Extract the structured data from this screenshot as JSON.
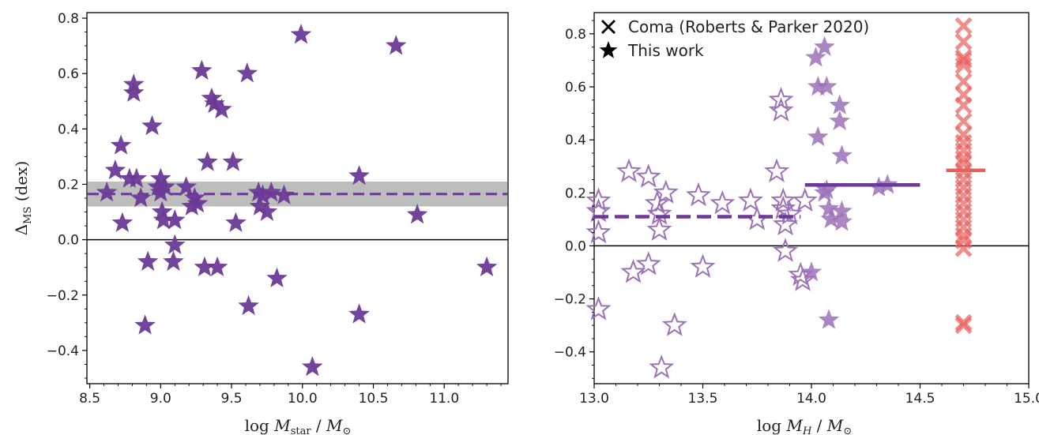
{
  "chart_data": [
    {
      "type": "scatter",
      "xlabel": "log  M_star / M_⊙",
      "ylabel": "Δ_MS  (dex)",
      "xlim": [
        8.48,
        11.45
      ],
      "ylim": [
        -0.52,
        0.82
      ],
      "xticks": [
        "8.5",
        "9.0",
        "9.5",
        "10.0",
        "10.5",
        "11.0"
      ],
      "yticks": [
        "−0.4",
        "−0.2",
        "0.0",
        "0.2",
        "0.4",
        "0.6",
        "0.8"
      ],
      "colors": {
        "points": "#6b3a96",
        "band": "#bdbdbd",
        "median": "#6b3a96",
        "zero": "#000000"
      },
      "band": [
        0.12,
        0.21
      ],
      "median_line": 0.165,
      "points": [
        [
          8.62,
          0.17
        ],
        [
          8.68,
          0.25
        ],
        [
          8.72,
          0.34
        ],
        [
          8.73,
          0.06
        ],
        [
          8.78,
          0.22
        ],
        [
          8.81,
          0.56
        ],
        [
          8.81,
          0.53
        ],
        [
          8.83,
          0.22
        ],
        [
          8.86,
          0.15
        ],
        [
          8.89,
          -0.31
        ],
        [
          8.91,
          -0.08
        ],
        [
          8.94,
          0.41
        ],
        [
          8.98,
          0.19
        ],
        [
          9.0,
          0.22
        ],
        [
          9.0,
          0.17
        ],
        [
          9.01,
          0.1
        ],
        [
          9.02,
          0.07
        ],
        [
          9.03,
          0.19
        ],
        [
          9.09,
          -0.08
        ],
        [
          9.1,
          -0.02
        ],
        [
          9.1,
          0.07
        ],
        [
          9.18,
          0.19
        ],
        [
          9.22,
          0.12
        ],
        [
          9.24,
          0.15
        ],
        [
          9.26,
          0.13
        ],
        [
          9.29,
          0.61
        ],
        [
          9.31,
          -0.1
        ],
        [
          9.33,
          0.28
        ],
        [
          9.36,
          0.51
        ],
        [
          9.38,
          0.49
        ],
        [
          9.4,
          -0.1
        ],
        [
          9.43,
          0.47
        ],
        [
          9.51,
          0.28
        ],
        [
          9.53,
          0.06
        ],
        [
          9.61,
          0.6
        ],
        [
          9.62,
          -0.24
        ],
        [
          9.69,
          0.17
        ],
        [
          9.7,
          0.12
        ],
        [
          9.72,
          0.16
        ],
        [
          9.75,
          0.1
        ],
        [
          9.78,
          0.17
        ],
        [
          9.82,
          -0.14
        ],
        [
          9.87,
          0.16
        ],
        [
          9.99,
          0.74
        ],
        [
          10.07,
          -0.46
        ],
        [
          10.4,
          0.23
        ],
        [
          10.4,
          -0.27
        ],
        [
          10.66,
          0.7
        ],
        [
          10.81,
          0.09
        ],
        [
          11.3,
          -0.1
        ]
      ]
    },
    {
      "type": "scatter",
      "xlabel": "log  M_H / M_⊙",
      "xlim": [
        13.0,
        15.0
      ],
      "ylim": [
        -0.52,
        0.88
      ],
      "xticks": [
        "13.0",
        "13.5",
        "14.0",
        "14.5",
        "15.0"
      ],
      "yticks": [
        "−0.4",
        "−0.2",
        "0.0",
        "0.2",
        "0.4",
        "0.6",
        "0.8"
      ],
      "colors": {
        "this_work": "#9b72b8",
        "coma": "#e8605c",
        "bins": "#6b3a96",
        "zero": "#000000"
      },
      "legend": {
        "position": "top-left",
        "entries": [
          "Coma (Roberts & Parker 2020)",
          "This work"
        ]
      },
      "bins": [
        {
          "x": [
            13.0,
            13.95
          ],
          "y": 0.11,
          "style": "dashed"
        },
        {
          "x": [
            13.97,
            14.5
          ],
          "y": 0.23,
          "style": "solid"
        },
        {
          "x": [
            14.62,
            14.8
          ],
          "y": 0.285,
          "style": "solid"
        }
      ],
      "this_work_open": [
        [
          13.02,
          0.17
        ],
        [
          13.02,
          0.13
        ],
        [
          13.02,
          0.05
        ],
        [
          13.02,
          -0.24
        ],
        [
          13.16,
          0.28
        ],
        [
          13.18,
          -0.1
        ],
        [
          13.25,
          0.26
        ],
        [
          13.25,
          -0.07
        ],
        [
          13.29,
          0.16
        ],
        [
          13.3,
          0.12
        ],
        [
          13.3,
          0.06
        ],
        [
          13.31,
          -0.46
        ],
        [
          13.33,
          0.2
        ],
        [
          13.37,
          -0.3
        ],
        [
          13.48,
          0.19
        ],
        [
          13.5,
          -0.08
        ],
        [
          13.59,
          0.16
        ],
        [
          13.72,
          0.17
        ],
        [
          13.75,
          0.1
        ],
        [
          13.84,
          0.28
        ],
        [
          13.86,
          0.55
        ],
        [
          13.86,
          0.51
        ],
        [
          13.87,
          0.17
        ],
        [
          13.87,
          0.14
        ],
        [
          13.88,
          0.08
        ],
        [
          13.88,
          -0.02
        ],
        [
          13.9,
          0.12
        ],
        [
          13.95,
          -0.11
        ],
        [
          13.96,
          -0.13
        ],
        [
          13.97,
          0.17
        ]
      ],
      "this_work_filled": [
        [
          14.0,
          -0.1
        ],
        [
          14.02,
          0.71
        ],
        [
          14.03,
          0.6
        ],
        [
          14.03,
          0.41
        ],
        [
          14.06,
          0.75
        ],
        [
          14.06,
          0.2
        ],
        [
          14.07,
          0.6
        ],
        [
          14.07,
          0.21
        ],
        [
          14.08,
          -0.28
        ],
        [
          14.08,
          0.14
        ],
        [
          14.09,
          0.1
        ],
        [
          14.13,
          0.53
        ],
        [
          14.13,
          0.47
        ],
        [
          14.14,
          0.34
        ],
        [
          14.14,
          0.13
        ],
        [
          14.14,
          0.09
        ],
        [
          14.31,
          0.22
        ],
        [
          14.35,
          0.23
        ]
      ],
      "coma": [
        [
          14.7,
          0.83
        ],
        [
          14.7,
          0.77
        ],
        [
          14.7,
          0.71
        ],
        [
          14.7,
          0.7
        ],
        [
          14.7,
          0.68
        ],
        [
          14.7,
          0.62
        ],
        [
          14.7,
          0.57
        ],
        [
          14.7,
          0.53
        ],
        [
          14.7,
          0.47
        ],
        [
          14.7,
          0.42
        ],
        [
          14.7,
          0.39
        ],
        [
          14.7,
          0.36
        ],
        [
          14.7,
          0.33
        ],
        [
          14.7,
          0.31
        ],
        [
          14.7,
          0.28
        ],
        [
          14.7,
          0.25
        ],
        [
          14.7,
          0.22
        ],
        [
          14.7,
          0.19
        ],
        [
          14.7,
          0.16
        ],
        [
          14.7,
          0.13
        ],
        [
          14.7,
          0.1
        ],
        [
          14.7,
          0.07
        ],
        [
          14.7,
          0.04
        ],
        [
          14.7,
          0.02
        ],
        [
          14.7,
          -0.01
        ],
        [
          14.7,
          -0.29
        ],
        [
          14.7,
          -0.3
        ]
      ]
    }
  ],
  "legend_labels": {
    "coma": "Coma (Roberts & Parker 2020)",
    "this_work": "This work"
  }
}
